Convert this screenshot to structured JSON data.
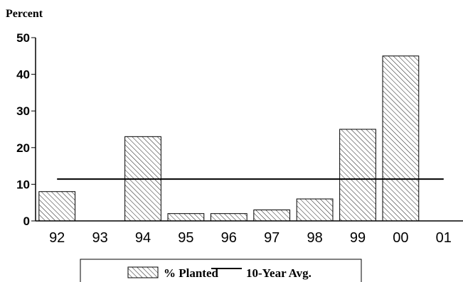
{
  "chart_data": {
    "type": "bar",
    "y_label": "Percent",
    "categories": [
      "92",
      "93",
      "94",
      "95",
      "96",
      "97",
      "98",
      "99",
      "00",
      "01"
    ],
    "series": [
      {
        "name": "% Planted",
        "color": "#000000",
        "values": [
          8,
          0,
          23,
          2,
          2,
          3,
          6,
          25,
          45,
          0
        ]
      }
    ],
    "average": {
      "name": "10-Year Avg.",
      "color": "#000000",
      "value": 11.4
    },
    "ylim": [
      0,
      50
    ],
    "yticks": [
      0,
      10,
      20,
      30,
      40,
      50
    ],
    "legend": "bottom"
  }
}
